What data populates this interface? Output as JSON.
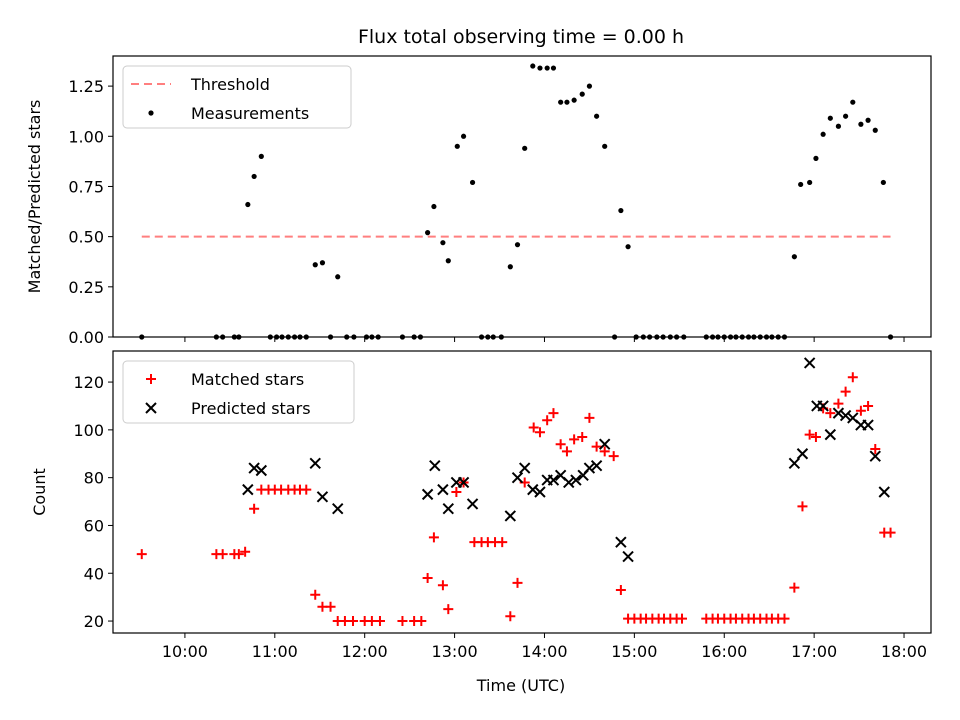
{
  "chart_data": {
    "title": "Flux total observing time = 0.00 h",
    "x_axis": {
      "xlabel": "Time (UTC)",
      "tick_labels": [
        "10:00",
        "11:00",
        "12:00",
        "13:00",
        "14:00",
        "15:00",
        "16:00",
        "17:00",
        "18:00"
      ],
      "tick_hours": [
        10,
        11,
        12,
        13,
        14,
        15,
        16,
        17,
        18
      ],
      "xlim_hours": [
        9.2,
        18.3
      ]
    },
    "charts": [
      {
        "type": "scatter",
        "ylabel": "Matched/Predicted stars",
        "ylim": [
          0,
          1.4
        ],
        "y_ticks": [
          0.0,
          0.25,
          0.5,
          0.75,
          1.0,
          1.25
        ],
        "y_tick_labels": [
          "0.00",
          "0.25",
          "0.50",
          "0.75",
          "1.00",
          "1.25"
        ],
        "legend": {
          "placement": "upper-left",
          "entries": [
            "Threshold",
            "Measurements"
          ]
        },
        "threshold": {
          "name": "Threshold",
          "y": 0.5,
          "x_range_hours": [
            9.52,
            17.85
          ],
          "color": "#ff7f7f",
          "style": "dashed"
        },
        "series": [
          {
            "name": "Measurements",
            "color": "#000000",
            "marker": "dot",
            "points": [
              [
                9.52,
                0.0
              ],
              [
                10.35,
                0.0
              ],
              [
                10.42,
                0.0
              ],
              [
                10.55,
                0.0
              ],
              [
                10.6,
                0.0
              ],
              [
                10.7,
                0.66
              ],
              [
                10.77,
                0.8
              ],
              [
                10.85,
                0.9
              ],
              [
                10.95,
                0.0
              ],
              [
                11.02,
                0.0
              ],
              [
                11.08,
                0.0
              ],
              [
                11.15,
                0.0
              ],
              [
                11.22,
                0.0
              ],
              [
                11.28,
                0.0
              ],
              [
                11.35,
                0.0
              ],
              [
                11.45,
                0.36
              ],
              [
                11.53,
                0.37
              ],
              [
                11.62,
                0.0
              ],
              [
                11.7,
                0.3
              ],
              [
                11.8,
                0.0
              ],
              [
                11.88,
                0.0
              ],
              [
                12.02,
                0.0
              ],
              [
                12.08,
                0.0
              ],
              [
                12.15,
                0.0
              ],
              [
                12.42,
                0.0
              ],
              [
                12.55,
                0.0
              ],
              [
                12.62,
                0.0
              ],
              [
                12.7,
                0.52
              ],
              [
                12.77,
                0.65
              ],
              [
                12.87,
                0.47
              ],
              [
                12.93,
                0.38
              ],
              [
                13.03,
                0.95
              ],
              [
                13.1,
                1.0
              ],
              [
                13.2,
                0.77
              ],
              [
                13.3,
                0.0
              ],
              [
                13.37,
                0.0
              ],
              [
                13.43,
                0.0
              ],
              [
                13.52,
                0.0
              ],
              [
                13.62,
                0.35
              ],
              [
                13.7,
                0.46
              ],
              [
                13.78,
                0.94
              ],
              [
                13.87,
                1.35
              ],
              [
                13.95,
                1.34
              ],
              [
                14.03,
                1.34
              ],
              [
                14.1,
                1.34
              ],
              [
                14.18,
                1.17
              ],
              [
                14.25,
                1.17
              ],
              [
                14.33,
                1.18
              ],
              [
                14.42,
                1.21
              ],
              [
                14.5,
                1.25
              ],
              [
                14.58,
                1.1
              ],
              [
                14.67,
                0.95
              ],
              [
                14.78,
                0.0
              ],
              [
                14.85,
                0.63
              ],
              [
                14.93,
                0.45
              ],
              [
                15.02,
                0.0
              ],
              [
                15.1,
                0.0
              ],
              [
                15.17,
                0.0
              ],
              [
                15.25,
                0.0
              ],
              [
                15.32,
                0.0
              ],
              [
                15.4,
                0.0
              ],
              [
                15.47,
                0.0
              ],
              [
                15.55,
                0.0
              ],
              [
                15.8,
                0.0
              ],
              [
                15.87,
                0.0
              ],
              [
                15.93,
                0.0
              ],
              [
                16.0,
                0.0
              ],
              [
                16.07,
                0.0
              ],
              [
                16.13,
                0.0
              ],
              [
                16.2,
                0.0
              ],
              [
                16.27,
                0.0
              ],
              [
                16.33,
                0.0
              ],
              [
                16.4,
                0.0
              ],
              [
                16.47,
                0.0
              ],
              [
                16.53,
                0.0
              ],
              [
                16.6,
                0.0
              ],
              [
                16.67,
                0.0
              ],
              [
                16.78,
                0.4
              ],
              [
                16.85,
                0.76
              ],
              [
                16.95,
                0.77
              ],
              [
                17.02,
                0.89
              ],
              [
                17.1,
                1.01
              ],
              [
                17.18,
                1.09
              ],
              [
                17.27,
                1.05
              ],
              [
                17.35,
                1.1
              ],
              [
                17.43,
                1.17
              ],
              [
                17.52,
                1.06
              ],
              [
                17.6,
                1.08
              ],
              [
                17.68,
                1.03
              ],
              [
                17.77,
                0.77
              ],
              [
                17.85,
                0.0
              ]
            ]
          }
        ]
      },
      {
        "type": "scatter",
        "ylabel": "Count",
        "ylim": [
          15,
          133
        ],
        "y_ticks": [
          20,
          40,
          60,
          80,
          100,
          120
        ],
        "y_tick_labels": [
          "20",
          "40",
          "60",
          "80",
          "100",
          "120"
        ],
        "legend": {
          "placement": "upper-left",
          "entries": [
            "Matched stars",
            "Predicted stars"
          ]
        },
        "series": [
          {
            "name": "Matched stars",
            "color": "#ff0000",
            "marker": "plus",
            "points": [
              [
                9.52,
                48
              ],
              [
                10.35,
                48
              ],
              [
                10.42,
                48
              ],
              [
                10.55,
                48
              ],
              [
                10.6,
                48
              ],
              [
                10.67,
                49
              ],
              [
                10.77,
                67
              ],
              [
                10.85,
                75
              ],
              [
                10.93,
                75
              ],
              [
                11.0,
                75
              ],
              [
                11.07,
                75
              ],
              [
                11.15,
                75
              ],
              [
                11.22,
                75
              ],
              [
                11.28,
                75
              ],
              [
                11.35,
                75
              ],
              [
                11.45,
                31
              ],
              [
                11.53,
                26
              ],
              [
                11.62,
                26
              ],
              [
                11.7,
                20
              ],
              [
                11.78,
                20
              ],
              [
                11.87,
                20
              ],
              [
                12.0,
                20
              ],
              [
                12.08,
                20
              ],
              [
                12.17,
                20
              ],
              [
                12.42,
                20
              ],
              [
                12.55,
                20
              ],
              [
                12.63,
                20
              ],
              [
                12.7,
                38
              ],
              [
                12.77,
                55
              ],
              [
                12.87,
                35
              ],
              [
                12.93,
                25
              ],
              [
                13.02,
                74
              ],
              [
                13.1,
                78
              ],
              [
                13.22,
                53
              ],
              [
                13.3,
                53
              ],
              [
                13.37,
                53
              ],
              [
                13.45,
                53
              ],
              [
                13.53,
                53
              ],
              [
                13.62,
                22
              ],
              [
                13.7,
                36
              ],
              [
                13.78,
                78
              ],
              [
                13.88,
                101
              ],
              [
                13.95,
                99
              ],
              [
                14.03,
                104
              ],
              [
                14.1,
                107
              ],
              [
                14.18,
                94
              ],
              [
                14.25,
                91
              ],
              [
                14.33,
                96
              ],
              [
                14.42,
                97
              ],
              [
                14.5,
                105
              ],
              [
                14.58,
                93
              ],
              [
                14.67,
                91
              ],
              [
                14.77,
                89
              ],
              [
                14.85,
                33
              ],
              [
                14.93,
                21
              ],
              [
                15.0,
                21
              ],
              [
                15.07,
                21
              ],
              [
                15.13,
                21
              ],
              [
                15.2,
                21
              ],
              [
                15.27,
                21
              ],
              [
                15.33,
                21
              ],
              [
                15.4,
                21
              ],
              [
                15.47,
                21
              ],
              [
                15.53,
                21
              ],
              [
                15.8,
                21
              ],
              [
                15.87,
                21
              ],
              [
                15.93,
                21
              ],
              [
                16.0,
                21
              ],
              [
                16.07,
                21
              ],
              [
                16.13,
                21
              ],
              [
                16.2,
                21
              ],
              [
                16.27,
                21
              ],
              [
                16.33,
                21
              ],
              [
                16.4,
                21
              ],
              [
                16.47,
                21
              ],
              [
                16.53,
                21
              ],
              [
                16.6,
                21
              ],
              [
                16.67,
                21
              ],
              [
                16.78,
                34
              ],
              [
                16.87,
                68
              ],
              [
                16.95,
                98
              ],
              [
                17.02,
                97
              ],
              [
                17.1,
                109
              ],
              [
                17.18,
                107
              ],
              [
                17.27,
                111
              ],
              [
                17.35,
                116
              ],
              [
                17.43,
                122
              ],
              [
                17.52,
                108
              ],
              [
                17.6,
                110
              ],
              [
                17.68,
                92
              ],
              [
                17.78,
                57
              ],
              [
                17.85,
                57
              ]
            ]
          },
          {
            "name": "Predicted stars",
            "color": "#000000",
            "marker": "x",
            "points": [
              [
                10.7,
                75
              ],
              [
                10.77,
                84
              ],
              [
                10.85,
                83
              ],
              [
                11.45,
                86
              ],
              [
                11.53,
                72
              ],
              [
                11.7,
                67
              ],
              [
                12.7,
                73
              ],
              [
                12.78,
                85
              ],
              [
                12.87,
                75
              ],
              [
                12.93,
                67
              ],
              [
                13.02,
                78
              ],
              [
                13.1,
                78
              ],
              [
                13.2,
                69
              ],
              [
                13.62,
                64
              ],
              [
                13.7,
                80
              ],
              [
                13.78,
                84
              ],
              [
                13.87,
                75
              ],
              [
                13.95,
                74
              ],
              [
                14.03,
                79
              ],
              [
                14.1,
                79
              ],
              [
                14.18,
                81
              ],
              [
                14.27,
                78
              ],
              [
                14.35,
                79
              ],
              [
                14.43,
                81
              ],
              [
                14.5,
                84
              ],
              [
                14.58,
                85
              ],
              [
                14.67,
                94
              ],
              [
                14.85,
                53
              ],
              [
                14.93,
                47
              ],
              [
                16.78,
                86
              ],
              [
                16.87,
                90
              ],
              [
                16.95,
                128
              ],
              [
                17.03,
                110
              ],
              [
                17.1,
                110
              ],
              [
                17.18,
                98
              ],
              [
                17.27,
                107
              ],
              [
                17.35,
                106
              ],
              [
                17.43,
                105
              ],
              [
                17.52,
                102
              ],
              [
                17.6,
                102
              ],
              [
                17.68,
                89
              ],
              [
                17.78,
                74
              ]
            ]
          }
        ]
      }
    ]
  }
}
